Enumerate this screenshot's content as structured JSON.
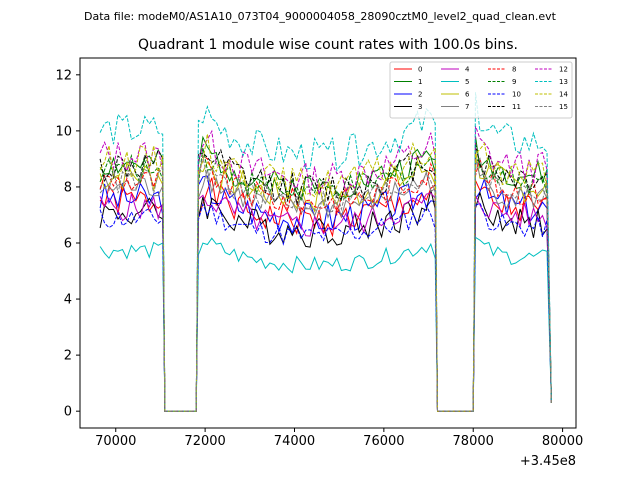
{
  "header": {
    "data_file": "Data file: modeM0/AS1A10_073T04_9000004058_28090cztM0_level2_quad_clean.evt"
  },
  "chart_data": {
    "type": "line",
    "title": "Quadrant 1 module wise count rates with 100.0s bins.",
    "xlabel": "",
    "ylabel": "",
    "offset_label": "+3.45e8",
    "xlim": [
      69200,
      80300
    ],
    "ylim": [
      -0.6,
      12.6
    ],
    "x_ticks": [
      70000,
      72000,
      74000,
      76000,
      78000,
      80000
    ],
    "x_tick_labels": [
      "70000",
      "72000",
      "74000",
      "76000",
      "78000",
      "80000"
    ],
    "y_ticks": [
      0,
      2,
      4,
      6,
      8,
      10,
      12
    ],
    "y_tick_labels": [
      "0",
      "2",
      "4",
      "6",
      "8",
      "10",
      "12"
    ],
    "grid": false,
    "legend_position": "top-right",
    "legend_columns": 4,
    "gaps": [
      [
        71050,
        71850
      ],
      [
        77150,
        78050
      ]
    ],
    "x_start": 69650,
    "x_end": 79750,
    "bin_size": 100,
    "series": [
      {
        "name": "0",
        "color": "#ff0000",
        "dash": "solid",
        "level": 7.3,
        "amp": 0.6,
        "seed": 1
      },
      {
        "name": "1",
        "color": "#008000",
        "dash": "solid",
        "level": 8.6,
        "amp": 0.5,
        "seed": 2
      },
      {
        "name": "2",
        "color": "#0000ff",
        "dash": "solid",
        "level": 7.4,
        "amp": 0.6,
        "seed": 3
      },
      {
        "name": "3",
        "color": "#000000",
        "dash": "solid",
        "level": 6.9,
        "amp": 0.6,
        "seed": 4
      },
      {
        "name": "4",
        "color": "#bf00bf",
        "dash": "solid",
        "level": 7.1,
        "amp": 0.5,
        "seed": 5
      },
      {
        "name": "5",
        "color": "#00bfbf",
        "dash": "solid",
        "level": 5.6,
        "amp": 0.3,
        "seed": 6
      },
      {
        "name": "6",
        "color": "#bfbf00",
        "dash": "solid",
        "level": 8.2,
        "amp": 0.6,
        "seed": 7
      },
      {
        "name": "7",
        "color": "#808080",
        "dash": "solid",
        "level": 7.8,
        "amp": 0.5,
        "seed": 8
      },
      {
        "name": "8",
        "color": "#ff0000",
        "dash": "dashed",
        "level": 8.0,
        "amp": 0.5,
        "seed": 9
      },
      {
        "name": "9",
        "color": "#008000",
        "dash": "dashed",
        "level": 8.4,
        "amp": 0.5,
        "seed": 10
      },
      {
        "name": "10",
        "color": "#0000ff",
        "dash": "dashed",
        "level": 6.7,
        "amp": 0.4,
        "seed": 11
      },
      {
        "name": "11",
        "color": "#000000",
        "dash": "dashed",
        "level": 8.5,
        "amp": 0.6,
        "seed": 12
      },
      {
        "name": "12",
        "color": "#bf00bf",
        "dash": "dashed",
        "level": 8.9,
        "amp": 0.6,
        "seed": 13
      },
      {
        "name": "13",
        "color": "#00bfbf",
        "dash": "dashed",
        "level": 9.8,
        "amp": 0.6,
        "seed": 14
      },
      {
        "name": "14",
        "color": "#bfbf00",
        "dash": "dashed",
        "level": 8.7,
        "amp": 0.6,
        "seed": 15
      },
      {
        "name": "15",
        "color": "#808080",
        "dash": "dashed",
        "level": 8.0,
        "amp": 0.5,
        "seed": 16
      }
    ]
  }
}
